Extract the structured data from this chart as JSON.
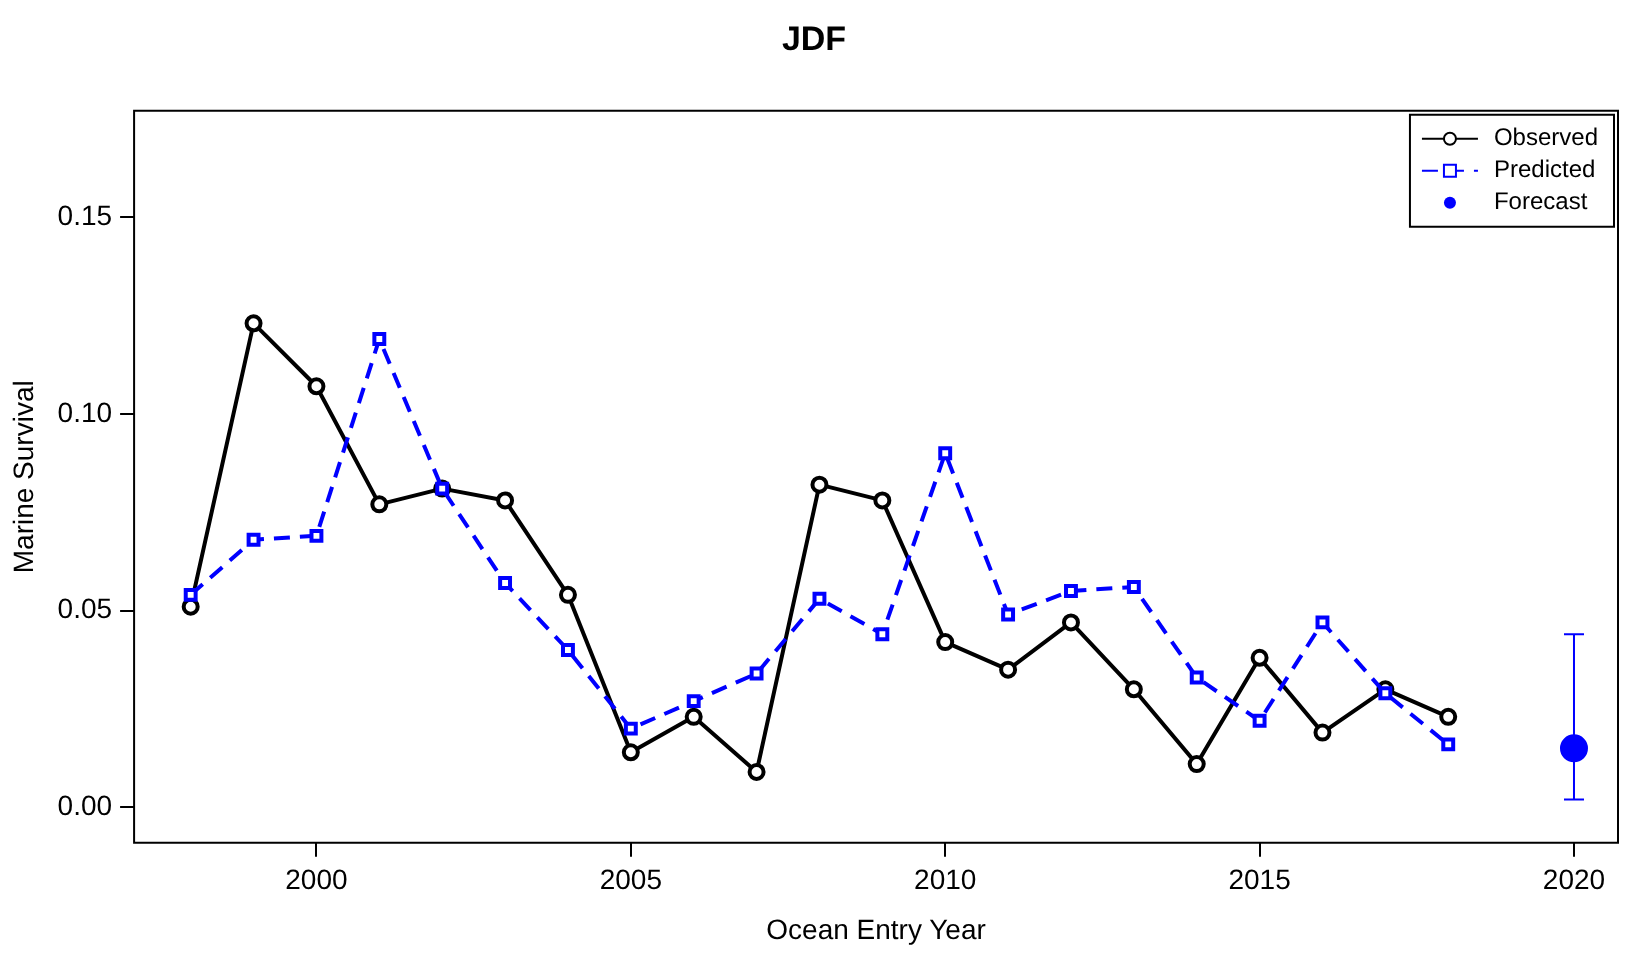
{
  "chart_data": {
    "type": "line",
    "title": "JDF",
    "xlabel": "Ocean Entry Year",
    "ylabel": "Marine Survival",
    "x": [
      1998,
      1999,
      2000,
      2001,
      2002,
      2003,
      2004,
      2005,
      2006,
      2007,
      2008,
      2009,
      2010,
      2011,
      2012,
      2013,
      2014,
      2015,
      2016,
      2017,
      2018
    ],
    "xlim": [
      1997.1,
      2020.7
    ],
    "xticks": [
      2000,
      2005,
      2010,
      2015,
      2020
    ],
    "ylim": [
      -0.009,
      0.177
    ],
    "yticks": [
      {
        "value": 0,
        "label": "0.00"
      },
      {
        "value": 0.05,
        "label": "0.05"
      },
      {
        "value": 0.1,
        "label": "0.10"
      },
      {
        "value": 0.15,
        "label": "0.15"
      }
    ],
    "legend": "top right",
    "grid": false,
    "series": [
      {
        "name": "Observed",
        "color": "#000000",
        "marker": "circle",
        "line_style": "solid",
        "values": [
          0.051,
          0.123,
          0.107,
          0.077,
          0.081,
          0.078,
          0.054,
          0.014,
          0.023,
          0.009,
          0.082,
          0.078,
          0.042,
          0.035,
          0.047,
          0.03,
          0.011,
          0.038,
          0.019,
          0.03,
          0.023
        ]
      },
      {
        "name": "Predicted",
        "color": "#0000ff",
        "marker": "square",
        "line_style": "dashed",
        "values": [
          0.054,
          0.068,
          0.069,
          0.119,
          0.081,
          0.057,
          0.04,
          0.02,
          0.027,
          0.034,
          0.053,
          0.044,
          0.09,
          0.049,
          0.055,
          0.056,
          0.033,
          0.022,
          0.047,
          0.029,
          0.016
        ]
      },
      {
        "name": "Forecast",
        "type": "scatter",
        "color": "#0000ff",
        "marker": "circle",
        "x": [
          2020
        ],
        "values": [
          0.015
        ],
        "errors": [
          [
            0.002,
            0.044
          ]
        ]
      }
    ]
  }
}
